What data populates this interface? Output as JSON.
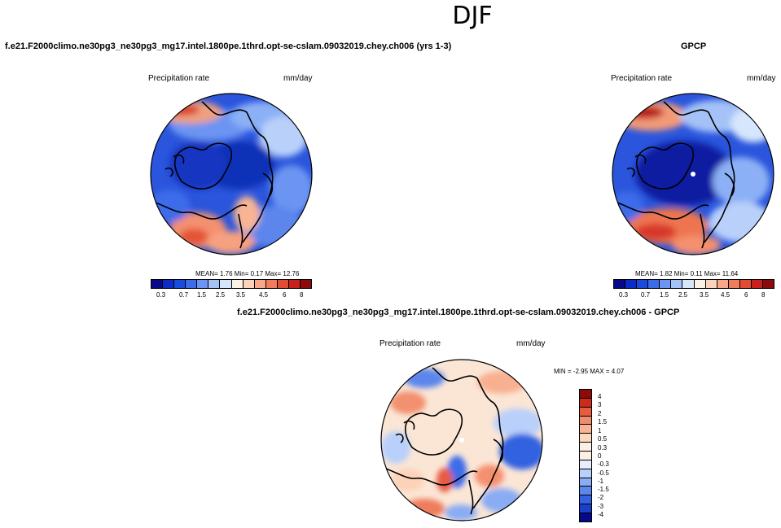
{
  "figure_title": "DJF",
  "top_left_panel": {
    "case_title": "f.e21.F2000climo.ne30pg3_ne30pg3_mg17.intel.1800pe.1thrd.opt-se-cslam.09032019.chey.ch006 (yrs 1-3)",
    "left_string": "Precipitation rate",
    "right_string": "mm/day",
    "stats": "MEAN=   1.76  Min=   0.17  Max=  12.76"
  },
  "top_right_panel": {
    "case_title": "GPCP",
    "left_string": "Precipitation rate",
    "right_string": "mm/day",
    "stats": "MEAN=   1.82  Min=   0.11  Max=  11.64"
  },
  "diff_panel": {
    "case_title": "f.e21.F2000climo.ne30pg3_ne30pg3_mg17.intel.1800pe.1thrd.opt-se-cslam.09032019.chey.ch006 - GPCP",
    "left_string": "Precipitation rate",
    "right_string": "mm/day",
    "stats": "MIN =  -2.95 MAX =   4.07"
  },
  "colors": {
    "abs_scale": [
      "#08088a",
      "#0b2cc8",
      "#1a4be0",
      "#3c6cea",
      "#6c94f2",
      "#a4c2f8",
      "#d6e6fc",
      "#fbf1e4",
      "#fcd2b8",
      "#f8a888",
      "#ef7c5c",
      "#e34c34",
      "#c8201a",
      "#8c0a0a"
    ],
    "diff_scale": [
      "#08088a",
      "#1a3fc8",
      "#3262e0",
      "#5c86ec",
      "#8aacf4",
      "#b8d0fa",
      "#e4eefc",
      "#fcf0e4",
      "#fcd8bc",
      "#f8b494",
      "#f08c6c",
      "#e65c40",
      "#cc2a1c",
      "#8c0a0a"
    ]
  },
  "abs_colorbar_labels": [
    "0.3",
    "0.7",
    "1.5",
    "2.5",
    "3.5",
    "4.5",
    "6",
    "8"
  ],
  "diff_colorbar_labels": [
    "4",
    "3",
    "2",
    "1.5",
    "1",
    "0.5",
    "0.3",
    "0",
    "-0.3",
    "-0.5",
    "-1",
    "-1.5",
    "-2",
    "-3",
    "-4"
  ]
}
